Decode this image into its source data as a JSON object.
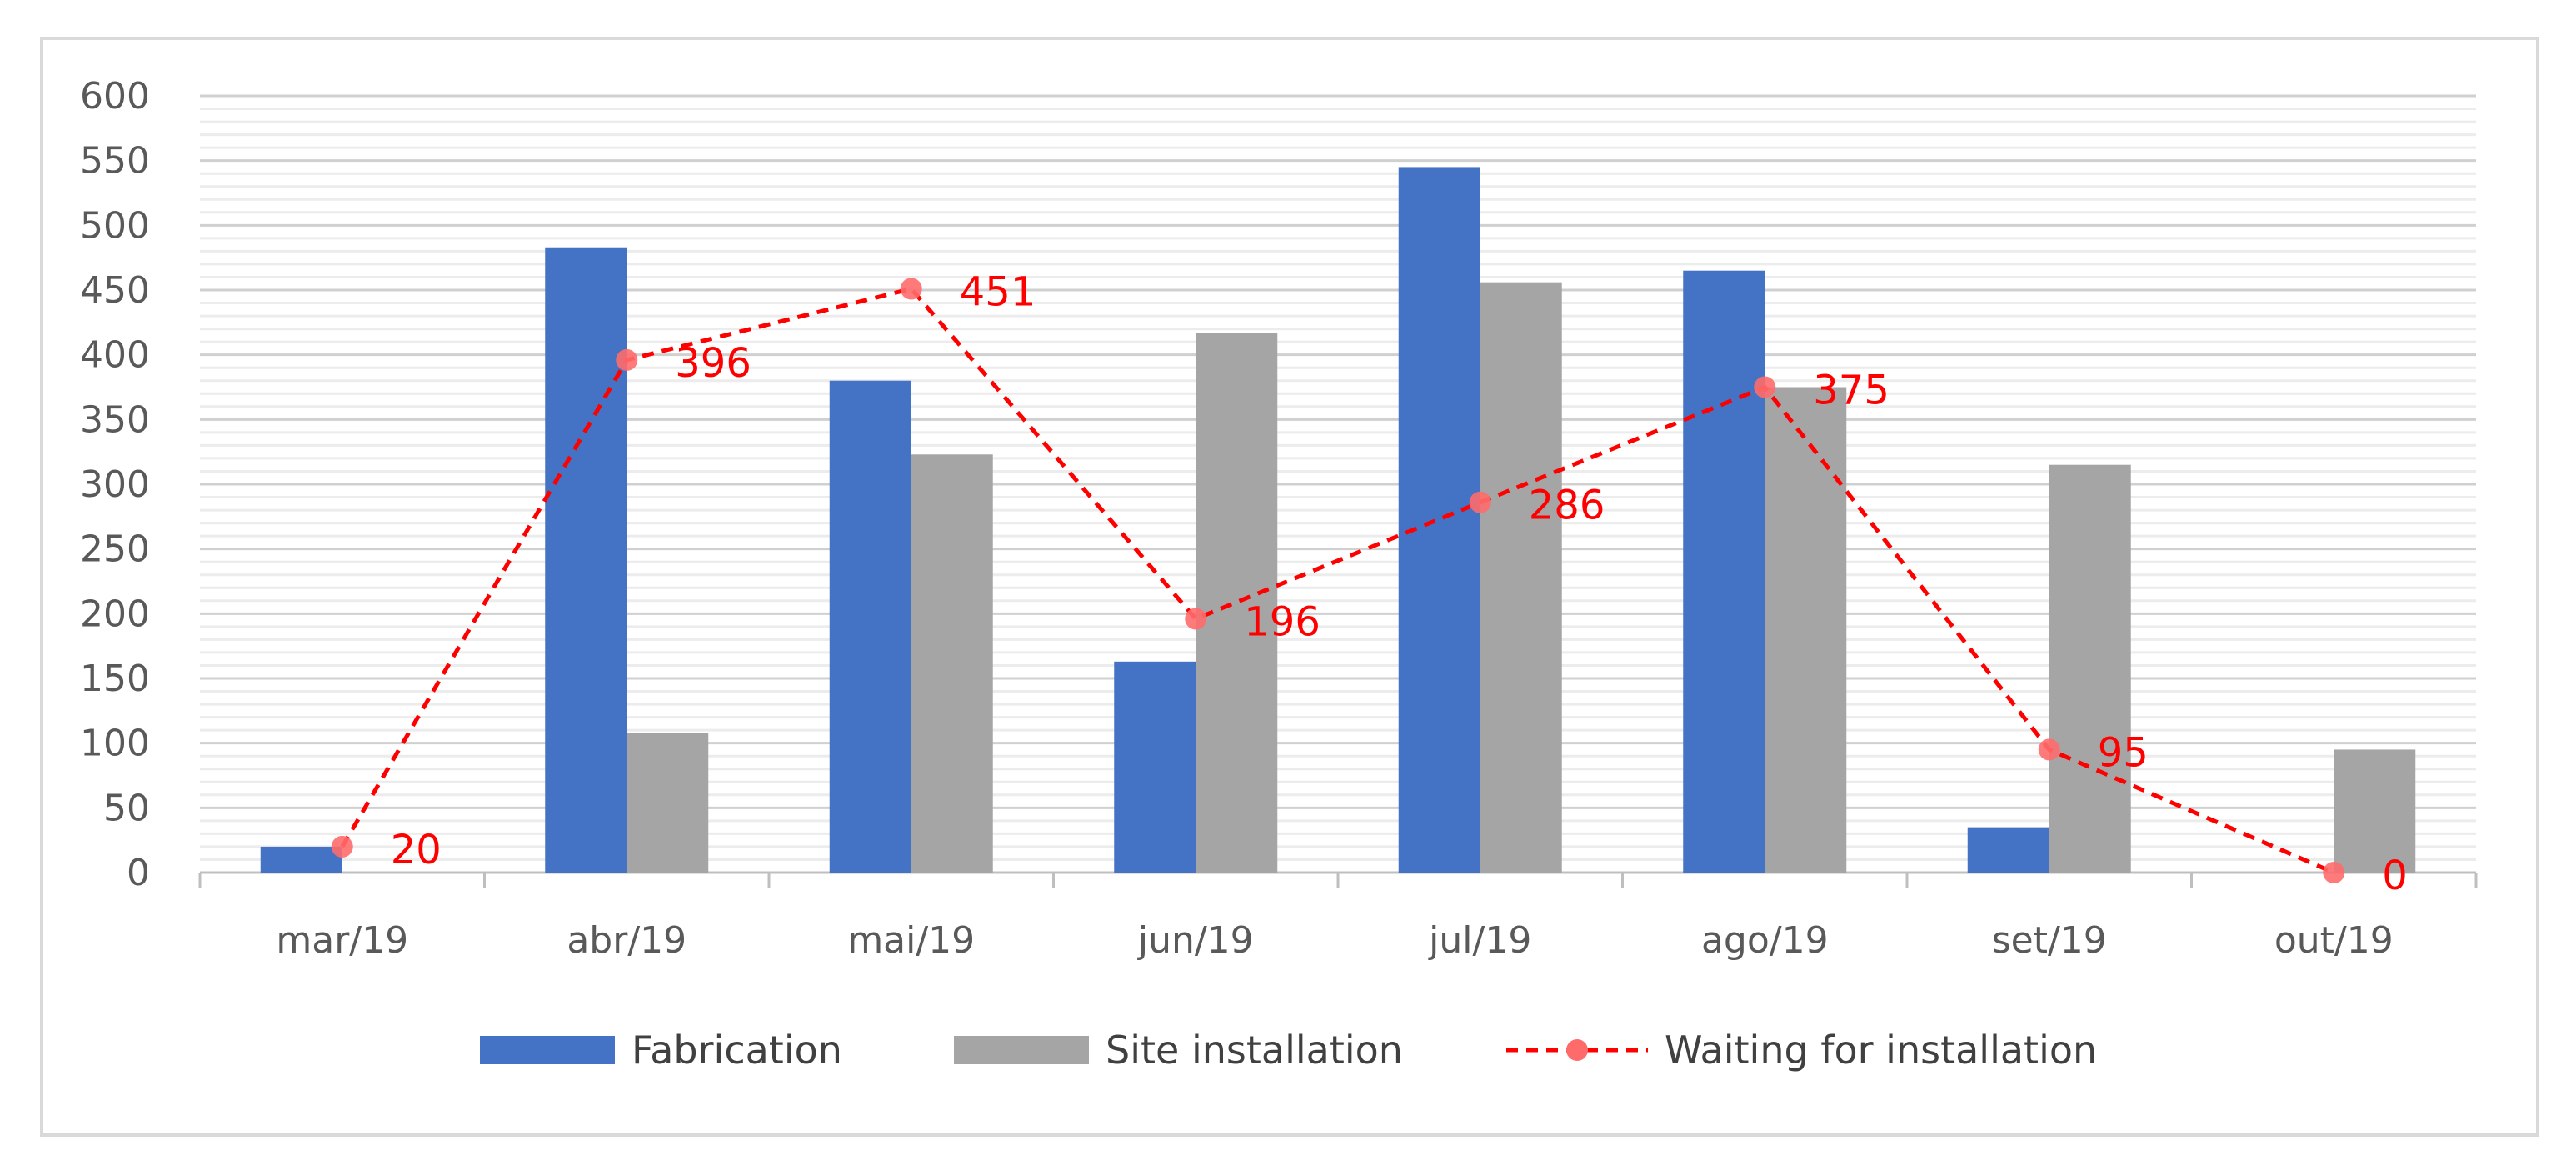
{
  "chart_data": {
    "type": "bar",
    "title": "",
    "xlabel": "",
    "ylabel": "",
    "categories": [
      "mar/19",
      "abr/19",
      "mai/19",
      "jun/19",
      "jul/19",
      "ago/19",
      "set/19",
      "out/19"
    ],
    "ylim": [
      0,
      600
    ],
    "yticks": [
      0,
      50,
      100,
      150,
      200,
      250,
      300,
      350,
      400,
      450,
      500,
      550,
      600
    ],
    "grid": true,
    "legend_position": "bottom",
    "series": [
      {
        "name": "Fabrication",
        "kind": "bar",
        "color": "#4472c4",
        "values": [
          20,
          483,
          380,
          163,
          545,
          465,
          35,
          0
        ]
      },
      {
        "name": "Site installation",
        "kind": "bar",
        "color": "#a5a5a5",
        "values": [
          0,
          108,
          323,
          417,
          456,
          375,
          315,
          95
        ]
      },
      {
        "name": "Waiting for installation",
        "kind": "line",
        "style": "dashed",
        "marker": "circle",
        "color": "#ff0000",
        "values": [
          20,
          396,
          451,
          196,
          286,
          375,
          95,
          0
        ],
        "data_labels": [
          "20",
          "396",
          "451",
          "196",
          "286",
          "375",
          "95",
          "0"
        ]
      }
    ]
  }
}
